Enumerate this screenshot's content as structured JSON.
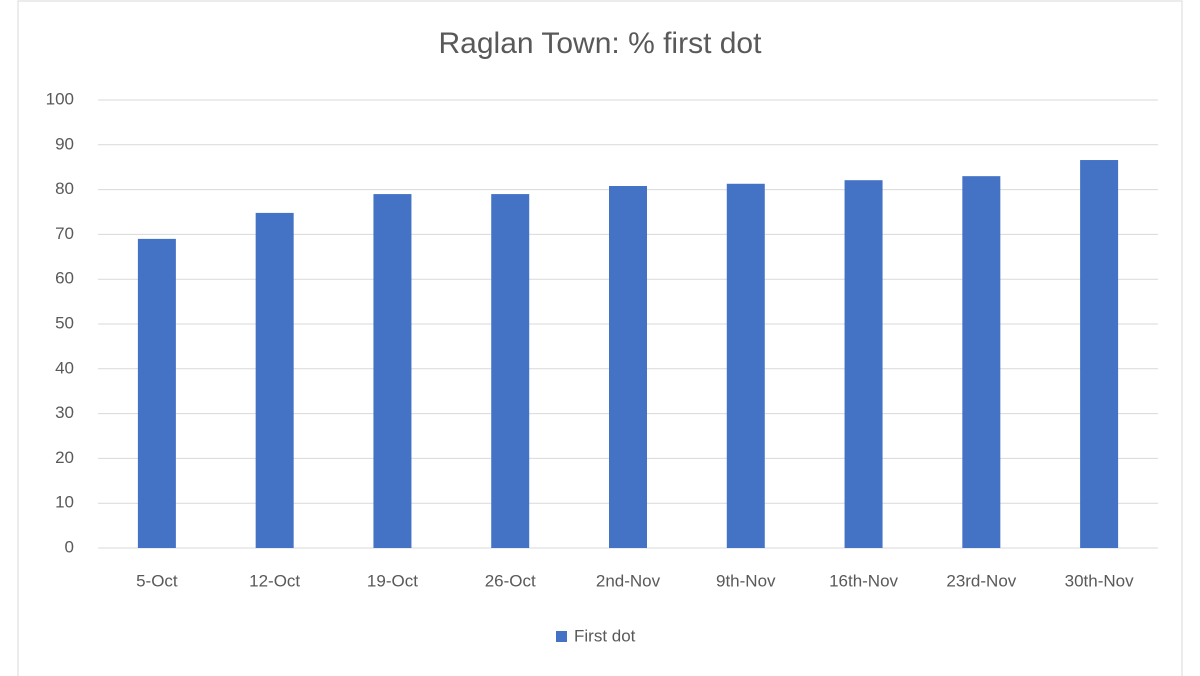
{
  "chart_data": {
    "type": "bar",
    "title": "Raglan Town: % first dot",
    "categories": [
      "5-Oct",
      "12-Oct",
      "19-Oct",
      "26-Oct",
      "2nd-Nov",
      "9th-Nov",
      "16th-Nov",
      "23rd-Nov",
      "30th-Nov"
    ],
    "series": [
      {
        "name": "First dot",
        "color": "#4472c4",
        "values": [
          69,
          74.8,
          79,
          79,
          80.8,
          81.3,
          82.1,
          83,
          86.6
        ]
      }
    ],
    "ylim": [
      0,
      100
    ],
    "yticks": [
      0,
      10,
      20,
      30,
      40,
      50,
      60,
      70,
      80,
      90,
      100
    ],
    "grid": true,
    "legend": "bottom"
  }
}
